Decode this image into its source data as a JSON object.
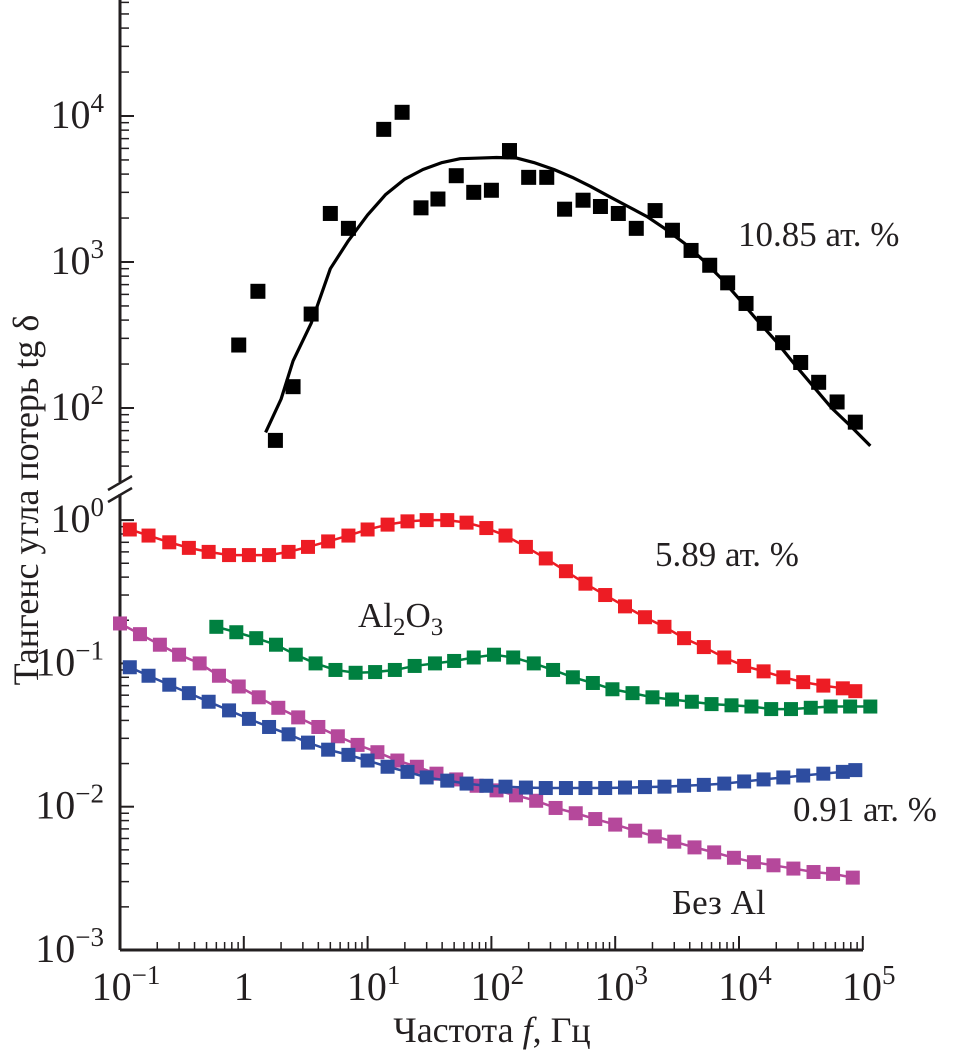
{
  "chart_data": {
    "type": "scatter",
    "title": "",
    "xlabel": "Частота f, Гц",
    "xlabel_parts": [
      "Частота ",
      "f",
      ", Гц"
    ],
    "ylabel": "Тангенс угла потерь tg δ",
    "xscale": "log",
    "yscale": "log",
    "xlim": [
      0.1,
      100000
    ],
    "ylim_lower": [
      0.001,
      1.5
    ],
    "ylim_upper": [
      45,
      100000
    ],
    "broken_y_axis": true,
    "grid": false,
    "x_ticks": [
      {
        "value": 0.1,
        "base": "10",
        "exp": "−1"
      },
      {
        "value": 1,
        "base": "1",
        "exp": ""
      },
      {
        "value": 10,
        "base": "10",
        "exp": "1"
      },
      {
        "value": 100,
        "base": "10",
        "exp": "2"
      },
      {
        "value": 1000,
        "base": "10",
        "exp": "3"
      },
      {
        "value": 10000,
        "base": "10",
        "exp": "4"
      },
      {
        "value": 100000,
        "base": "10",
        "exp": "5"
      }
    ],
    "y_ticks_upper": [
      {
        "value": 100,
        "base": "10",
        "exp": "2"
      },
      {
        "value": 1000,
        "base": "10",
        "exp": "3"
      },
      {
        "value": 10000,
        "base": "10",
        "exp": "4"
      }
    ],
    "y_ticks_lower": [
      {
        "value": 0.001,
        "base": "10",
        "exp": "−3"
      },
      {
        "value": 0.01,
        "base": "10",
        "exp": "−2"
      },
      {
        "value": 0.1,
        "base": "10",
        "exp": "−1"
      },
      {
        "value": 1,
        "base": "10",
        "exp": "0"
      }
    ],
    "series": [
      {
        "name": "10.85 ат. %",
        "label_text": "10.85 ат. %",
        "color": "#000000",
        "panel": "upper",
        "marker": "square",
        "connect": false,
        "x": [
          0.91,
          1.3,
          1.8,
          2.5,
          3.5,
          5.0,
          7.0,
          13.5,
          19,
          27,
          37,
          52,
          72,
          100,
          140,
          200,
          280,
          390,
          550,
          760,
          1060,
          1480,
          2100,
          2900,
          4100,
          5800,
          8100,
          11400,
          16000,
          22500,
          31500,
          44000,
          62000,
          87000
        ],
        "y": [
          270,
          630,
          60,
          140,
          440,
          2150,
          1700,
          8100,
          10600,
          2350,
          2700,
          3900,
          3000,
          3100,
          5800,
          3800,
          3800,
          2300,
          2650,
          2400,
          2150,
          1700,
          2250,
          1650,
          1200,
          950,
          720,
          520,
          380,
          280,
          205,
          150,
          110,
          80
        ]
      },
      {
        "name": "10.85 ат. % fit",
        "color": "#000000",
        "panel": "upper",
        "kind": "line",
        "x": [
          1.5,
          2.0,
          2.5,
          3.5,
          5.0,
          7.0,
          10,
          14,
          20,
          28,
          40,
          56,
          80,
          110,
          160,
          220,
          320,
          450,
          630,
          900,
          1270,
          1800,
          2500,
          3600,
          5000,
          7100,
          10000,
          14000,
          20000,
          28000,
          40000,
          56000,
          80000,
          115000
        ],
        "y": [
          68,
          115,
          210,
          380,
          900,
          1400,
          2100,
          2900,
          3700,
          4300,
          4800,
          5100,
          5150,
          5200,
          5150,
          4800,
          4300,
          3800,
          3300,
          2800,
          2400,
          2050,
          1700,
          1350,
          1050,
          780,
          560,
          400,
          285,
          200,
          140,
          100,
          75,
          55
        ]
      },
      {
        "name": "5.89 ат. %",
        "label_text": "5.89 ат. %",
        "color": "#ed1c24",
        "panel": "lower",
        "marker": "square",
        "connect": true,
        "x": [
          0.12,
          0.17,
          0.25,
          0.36,
          0.52,
          0.76,
          1.1,
          1.6,
          2.3,
          3.3,
          4.8,
          7.0,
          10,
          14.5,
          21,
          30,
          44,
          63,
          91,
          130,
          190,
          275,
          400,
          575,
          830,
          1200,
          1740,
          2500,
          3600,
          5200,
          7600,
          11000,
          15800,
          22800,
          33000,
          48000,
          69000,
          87000
        ],
        "y": [
          0.86,
          0.78,
          0.7,
          0.64,
          0.6,
          0.57,
          0.57,
          0.57,
          0.6,
          0.65,
          0.71,
          0.78,
          0.86,
          0.93,
          0.98,
          1.0,
          1.0,
          0.96,
          0.88,
          0.78,
          0.65,
          0.54,
          0.44,
          0.36,
          0.3,
          0.25,
          0.21,
          0.18,
          0.15,
          0.13,
          0.11,
          0.096,
          0.088,
          0.08,
          0.074,
          0.07,
          0.067,
          0.064
        ]
      },
      {
        "name": "Al2O3",
        "label_text": "Al",
        "label_sub1": "2",
        "label_mid": "O",
        "label_sub2": "3",
        "color": "#008040",
        "panel": "lower",
        "marker": "square",
        "connect": true,
        "x": [
          0.6,
          0.87,
          1.26,
          1.82,
          2.63,
          3.8,
          5.5,
          8.0,
          11.5,
          16.6,
          24,
          35,
          50,
          72,
          105,
          150,
          220,
          315,
          455,
          660,
          950,
          1380,
          2000,
          2880,
          4160,
          6000,
          8700,
          12600,
          18200,
          26300,
          38000,
          55000,
          79000,
          115000
        ],
        "y": [
          0.18,
          0.165,
          0.15,
          0.135,
          0.115,
          0.1,
          0.09,
          0.086,
          0.087,
          0.09,
          0.096,
          0.1,
          0.104,
          0.11,
          0.115,
          0.11,
          0.1,
          0.09,
          0.08,
          0.073,
          0.066,
          0.062,
          0.058,
          0.056,
          0.054,
          0.052,
          0.051,
          0.05,
          0.048,
          0.048,
          0.049,
          0.05,
          0.05,
          0.05
        ]
      },
      {
        "name": "Без Al",
        "label_text": "Без Al",
        "color": "#b5489b",
        "panel": "lower",
        "marker": "square",
        "connect": true,
        "x": [
          0.1,
          0.145,
          0.21,
          0.3,
          0.44,
          0.63,
          0.91,
          1.32,
          1.9,
          2.75,
          4.0,
          5.75,
          8.3,
          12,
          17.4,
          25,
          36,
          52,
          76,
          110,
          158,
          230,
          330,
          480,
          690,
          1000,
          1450,
          2090,
          3000,
          4370,
          6300,
          9100,
          13200,
          19000,
          27500,
          40000,
          57500,
          83000
        ],
        "y": [
          0.19,
          0.16,
          0.135,
          0.115,
          0.1,
          0.082,
          0.069,
          0.058,
          0.049,
          0.042,
          0.036,
          0.031,
          0.027,
          0.024,
          0.021,
          0.019,
          0.017,
          0.0155,
          0.014,
          0.013,
          0.012,
          0.011,
          0.0098,
          0.009,
          0.0082,
          0.0075,
          0.0068,
          0.0062,
          0.0057,
          0.0052,
          0.0048,
          0.0044,
          0.0041,
          0.0039,
          0.0037,
          0.0035,
          0.0034,
          0.0032
        ]
      },
      {
        "name": "0.91 ат. %",
        "label_text": "0.91 ат. %",
        "color": "#2e4da0",
        "panel": "lower",
        "marker": "square",
        "connect": true,
        "x": [
          0.12,
          0.17,
          0.25,
          0.36,
          0.52,
          0.76,
          1.1,
          1.6,
          2.3,
          3.3,
          4.8,
          7.0,
          10,
          14.5,
          21,
          30,
          44,
          63,
          91,
          130,
          190,
          275,
          400,
          575,
          830,
          1200,
          1740,
          2500,
          3600,
          5200,
          7600,
          11000,
          15800,
          22800,
          33000,
          48000,
          69000,
          87000
        ],
        "y": [
          0.094,
          0.082,
          0.071,
          0.062,
          0.054,
          0.047,
          0.041,
          0.036,
          0.032,
          0.028,
          0.025,
          0.023,
          0.021,
          0.019,
          0.0175,
          0.016,
          0.0152,
          0.0145,
          0.014,
          0.0138,
          0.0136,
          0.0135,
          0.0135,
          0.0135,
          0.0135,
          0.0136,
          0.0137,
          0.0138,
          0.014,
          0.0142,
          0.0145,
          0.015,
          0.0155,
          0.016,
          0.0165,
          0.017,
          0.0175,
          0.018
        ]
      }
    ]
  }
}
